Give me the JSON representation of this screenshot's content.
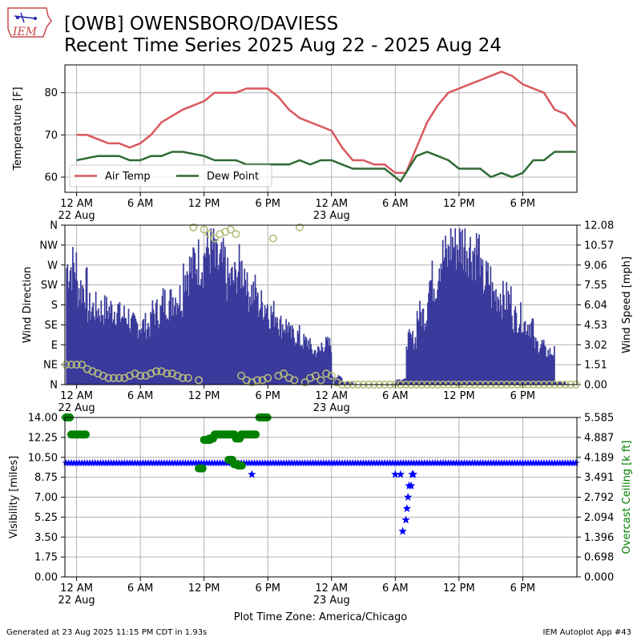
{
  "header": {
    "title_line1": "[OWB] OWENSBORO/DAVIESS",
    "title_line2": "Recent Time Series 2025 Aug 22 - 2025 Aug 24"
  },
  "footer": {
    "generated": "Generated at 23 Aug 2025 11:15 PM CDT in 1.93s",
    "app": "IEM Autoplot App #43",
    "timezone": "Plot Time Zone: America/Chicago"
  },
  "logo": {
    "text": "IEM"
  },
  "colors": {
    "air_temp": "#d9585e",
    "dew_point": "#2e6b34",
    "wind_speed": "#3a3a9c",
    "wind_dir": "#b7bb7a",
    "visibility": "#0000ff",
    "ceiling": "#008000",
    "grid": "#b0b0b0"
  },
  "x_ticks": [
    {
      "h": 0,
      "label": "12 AM",
      "sub": "22 Aug"
    },
    {
      "h": 6,
      "label": "6 AM",
      "sub": ""
    },
    {
      "h": 12,
      "label": "12 PM",
      "sub": ""
    },
    {
      "h": 18,
      "label": "6 PM",
      "sub": ""
    },
    {
      "h": 24,
      "label": "12 AM",
      "sub": "23 Aug"
    },
    {
      "h": 30,
      "label": "6 AM",
      "sub": ""
    },
    {
      "h": 36,
      "label": "12 PM",
      "sub": ""
    },
    {
      "h": 42,
      "label": "6 PM",
      "sub": ""
    }
  ],
  "chart_data": [
    {
      "type": "line",
      "ylabel": "Temperature [F]",
      "xlim_hours": [
        -1.1,
        47.1
      ],
      "ylim": [
        56.4,
        86.6
      ],
      "yticks": [
        60,
        70,
        80
      ],
      "legend": "lower-left",
      "series": [
        {
          "name": "Air Temp",
          "x": [
            0,
            1,
            3,
            4,
            5,
            6,
            7,
            8,
            10,
            12,
            13,
            15,
            16,
            17,
            18,
            19,
            20,
            21,
            24,
            25,
            26,
            27,
            28,
            29,
            30,
            31,
            32,
            33,
            34,
            35,
            36,
            37,
            38,
            39,
            40,
            41,
            42,
            43,
            44,
            45,
            46,
            47
          ],
          "y": [
            70,
            70,
            68,
            68,
            67,
            68,
            70,
            73,
            76,
            78,
            80,
            80,
            81,
            81,
            81,
            79,
            76,
            74,
            71,
            67,
            64,
            64,
            63,
            63,
            61,
            61,
            67,
            73,
            77,
            80,
            81,
            82,
            83,
            84,
            85,
            84,
            82,
            81,
            80,
            76,
            75,
            72
          ]
        },
        {
          "name": "Dew Point",
          "x": [
            0,
            2,
            4,
            5,
            6,
            7,
            8,
            9,
            10,
            12,
            13,
            15,
            16,
            17,
            18,
            19,
            20,
            21,
            22,
            23,
            24,
            25,
            26,
            27,
            29,
            30,
            30.5,
            31,
            32,
            33,
            34,
            35,
            36,
            37,
            38,
            39,
            40,
            41,
            42,
            43,
            44,
            45,
            46,
            47
          ],
          "y": [
            64,
            65,
            65,
            64,
            64,
            65,
            65,
            66,
            66,
            65,
            64,
            64,
            63,
            63,
            63,
            63,
            63,
            64,
            63,
            64,
            64,
            63,
            62,
            62,
            62,
            60,
            59,
            61,
            65,
            66,
            65,
            64,
            62,
            62,
            62,
            60,
            61,
            60,
            61,
            64,
            64,
            66,
            66,
            66
          ]
        }
      ]
    },
    {
      "type": "bar",
      "ylabel": "Wind Direction",
      "y2label": "Wind Speed [mph]",
      "yticks": [
        "N",
        "NE",
        "E",
        "SE",
        "S",
        "SW",
        "W",
        "NW",
        "N"
      ],
      "y2ticks": [
        "0.00",
        "1.51",
        "3.02",
        "4.53",
        "6.04",
        "7.55",
        "9.06",
        "10.57",
        "12.08"
      ],
      "xlim_hours": [
        -1.1,
        47.1
      ],
      "y2lim": [
        0,
        12.08
      ],
      "series": [
        {
          "name": "Wind Speed",
          "style": "bars",
          "x": [
            -1,
            0,
            1,
            2,
            3,
            4,
            5,
            6,
            7,
            8,
            9,
            10,
            11,
            12,
            13,
            14,
            15,
            16,
            17,
            18,
            19,
            20,
            21,
            22,
            23,
            24,
            25,
            26,
            27,
            28,
            29,
            30,
            31,
            32,
            33,
            34,
            35,
            36,
            37,
            38,
            39,
            40,
            41,
            42,
            43,
            44,
            45,
            46,
            47
          ],
          "y": [
            9.1,
            7.5,
            5.9,
            5.8,
            5.8,
            5.3,
            4.6,
            4.6,
            5.6,
            6.4,
            6.8,
            8.9,
            9.6,
            10.5,
            9.3,
            8.1,
            8.9,
            7.2,
            6.2,
            5.5,
            4.6,
            3.8,
            3.3,
            2.6,
            3.1,
            0.6,
            0.2,
            0,
            0,
            0,
            0,
            0.4,
            3.5,
            5.4,
            8.0,
            9.8,
            10.9,
            10.9,
            10.4,
            8.1,
            7.0,
            6.6,
            5.2,
            4.7,
            3.1,
            2.5,
            0.2,
            0,
            0
          ]
        },
        {
          "name": "Wind Direction",
          "style": "circles",
          "x": [
            -1,
            -0.5,
            0,
            0.5,
            1,
            1.5,
            2,
            2.5,
            3,
            3.5,
            4,
            4.5,
            5,
            5.5,
            6,
            6.5,
            7,
            7.5,
            8,
            8.5,
            9,
            9.5,
            10,
            10.5,
            11,
            11.5,
            12,
            12.5,
            13,
            13.5,
            14,
            14.5,
            15,
            15.5,
            16,
            16.5,
            17,
            17.5,
            18,
            18.5,
            19,
            19.5,
            20,
            20.5,
            21,
            21.5,
            22,
            22.5,
            23,
            23.5,
            24,
            24.5,
            25,
            25.5,
            26,
            26.5,
            27,
            27.5,
            28,
            28.5,
            29,
            29.5,
            30,
            30.5,
            31,
            31.5,
            32,
            32.5,
            33,
            33.5,
            34,
            34.5,
            35,
            35.5,
            36,
            36.5,
            37,
            37.5,
            38,
            38.5,
            39,
            39.5,
            40,
            40.5,
            41,
            41.5,
            42,
            42.5,
            43,
            43.5,
            44,
            44.5,
            45,
            45.5,
            46,
            46.5,
            47
          ],
          "y": [
            45,
            45,
            45,
            45,
            35,
            30,
            25,
            20,
            15,
            15,
            15,
            15,
            20,
            25,
            20,
            20,
            25,
            30,
            30,
            25,
            25,
            20,
            15,
            15,
            355,
            10,
            350,
            340,
            330,
            340,
            345,
            350,
            340,
            20,
            10,
            5,
            10,
            10,
            15,
            330,
            20,
            25,
            15,
            10,
            355,
            5,
            15,
            20,
            10,
            25,
            20,
            5,
            0,
            0,
            0,
            0,
            0,
            0,
            0,
            0,
            0,
            0,
            0,
            0,
            0,
            0,
            0,
            0,
            0,
            0,
            0,
            0,
            0,
            0,
            0,
            0,
            0,
            0,
            0,
            0,
            0,
            0,
            0,
            0,
            0,
            0,
            0,
            0,
            0,
            0,
            0,
            0,
            0,
            0,
            0,
            0,
            0
          ]
        }
      ]
    },
    {
      "type": "scatter",
      "ylabel": "Visibility [miles]",
      "y2label": "Overcast Ceiling [k ft]",
      "ylim": [
        0,
        14
      ],
      "y2lim": [
        0,
        5.585
      ],
      "yticks": [
        "0.00",
        "1.75",
        "3.50",
        "5.25",
        "7.00",
        "8.75",
        "10.50",
        "12.25",
        "14.00"
      ],
      "y2ticks": [
        "0.000",
        "0.698",
        "1.396",
        "2.094",
        "2.792",
        "3.491",
        "4.189",
        "4.887",
        "5.585"
      ],
      "xlim_hours": [
        -1.1,
        47.1
      ],
      "series": [
        {
          "name": "Visibility",
          "marker": "star",
          "x": [
            16.5,
            30,
            30.5,
            30.7,
            31,
            31.1,
            31.2,
            31.3,
            31.5,
            31.6,
            31.7
          ],
          "y": [
            9,
            9,
            9,
            4,
            5,
            6,
            7,
            8,
            8,
            9,
            9
          ],
          "baseline": 10
        },
        {
          "name": "Overcast Ceiling",
          "marker": "circle",
          "x": [
            -1,
            -0.5,
            0,
            0.5,
            11.5,
            12,
            12.2,
            12.5,
            13,
            13.5,
            14,
            14.5,
            15,
            15.5,
            16,
            16.5,
            14.3,
            14.8,
            15.2,
            17.2,
            17.6
          ],
          "y": [
            5.585,
            4.987,
            4.987,
            4.987,
            3.8,
            4.8,
            4.8,
            4.85,
            4.987,
            4.987,
            4.987,
            4.987,
            4.85,
            4.987,
            4.987,
            4.987,
            4.1,
            3.95,
            3.9,
            5.585,
            5.585
          ]
        }
      ]
    }
  ]
}
